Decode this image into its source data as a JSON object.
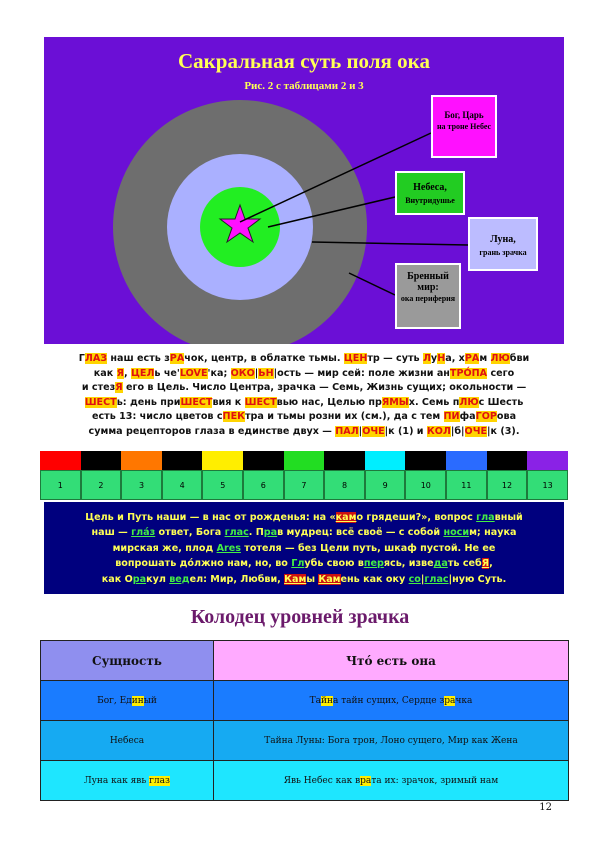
{
  "panel": {
    "title": "Сакральная суть поля ока",
    "subtitle": "Рис. 2 с таблицами 2 и 3",
    "labels": {
      "god_main": "Бог, Царь",
      "god_sub": "на троне Небес",
      "heaven_main": "Небеса,",
      "heaven_sub": "Внутридушье",
      "moon_main": "Луна,",
      "moon_sub": "грань зрачка",
      "mortal_main": "Бренный мир:",
      "mortal_sub": "ока периферия"
    },
    "colors": {
      "background": "#6b0fd6",
      "outer_ring": "#6e6e6e",
      "middle_ring": "#aab0ff",
      "inner_ring": "#22ee22",
      "star": "#ff10ff"
    }
  },
  "para1": {
    "l1": [
      "Г",
      "ЛАЗ",
      " наш есть з",
      "РА",
      "чок, центр, в облатке тьмы. ",
      "ЦЕН",
      "тр — суть ",
      "Л",
      "у",
      "Н",
      "а, х",
      "РА",
      "м ",
      "Л",
      "Ю",
      "бви"
    ],
    "l2": [
      "как ",
      "Я",
      ", ",
      "ЦЕЛ",
      "ь че'",
      "LOVE",
      "'ка; ",
      "ОКО",
      "|",
      "Ь",
      "Н",
      "|ость — мир сей: поле жизни ан",
      "ТРО́ПА",
      " сего"
    ],
    "l3": [
      "и стез",
      "Я",
      " его в Цель. Число Центра, зрачка — Семь, Жизнь сущих; окольности —"
    ],
    "l4": [
      "ШЕСТ",
      "ь: день при",
      "ШЕСТ",
      "вия к ",
      "ШЕСТ",
      "вью нас, Целью пр",
      "ЯМЫ",
      "х. Семь п",
      "ЛЮ",
      "с Шесть"
    ],
    "l5": [
      "есть 13: число цветов с",
      "ПЕК",
      "тра и тьмы розни их (см.), да с тем ",
      "ПИ",
      "фа",
      "ГО",
      "Р",
      "ова"
    ],
    "l6": [
      "сумма рецепторов глаза в единстве двух — ",
      "ПАЛ",
      "|",
      "ОЧЕ",
      "|к (1) и ",
      "КОЛ",
      "|б|",
      "ОЧЕ",
      "|к (3)."
    ]
  },
  "spectrum": {
    "colors": [
      "#ff0000",
      "#000000",
      "#ff7700",
      "#000000",
      "#ffee00",
      "#000000",
      "#22dd22",
      "#000000",
      "#00eeff",
      "#000000",
      "#2a6bff",
      "#000000",
      "#8a22e6"
    ],
    "numbers": [
      "1",
      "2",
      "3",
      "4",
      "5",
      "6",
      "7",
      "8",
      "9",
      "10",
      "11",
      "12",
      "13"
    ]
  },
  "para2": {
    "l1": [
      "Цель и Путь наши — в нас от рожденья: на «",
      "кам",
      "о грядеши?», вопрос ",
      "гла",
      "вный"
    ],
    "l2": [
      "наш — ",
      "глáз",
      " ответ, Бога ",
      "глас",
      ". П",
      "ра",
      "в мудрец: всё своё — с собой ",
      "носи",
      "м; наука"
    ],
    "l3": [
      "мирская же, плод ",
      "Ares",
      " тотеля — без Цели путь, шкаф пустой. Не ее"
    ],
    "l4": [
      "вопрошать дóлжно нам, но, во ",
      "Гл",
      "убь свою в",
      "пер",
      "ясь, изве",
      "да",
      "ть себ",
      "Я",
      ","
    ],
    "l5": [
      "как О",
      "ра",
      "кул ",
      "вед",
      "ел: Мир, Любви, ",
      "Кам",
      "ы ",
      "Кам",
      "ень как оку ",
      "со",
      "|",
      "глас",
      "|ную Суть."
    ]
  },
  "section_title": "Колодец уровней зрачка",
  "table": {
    "headers": [
      "Сущность",
      "Чтó есть она"
    ],
    "rows": [
      {
        "c1a": "Бог, Ед",
        "c1b": "ин",
        "c1c": "ый",
        "c2a": "Та",
        "c2b": "йн",
        "c2c": "а тайн сущих, Сердце з",
        "c2d": "ра",
        "c2e": "чка"
      },
      {
        "c1a": "Небеса",
        "c2a": "Тайна Луны: Бога трон, Лоно сущего, Мир как Жена"
      },
      {
        "c1a": "Луна как явь ",
        "c1b": "глаз",
        "c2a": "Явь Небес как в",
        "c2b": "ра",
        "c2c": "та их: зрачок, зримый нам"
      }
    ]
  },
  "page_number": "12"
}
